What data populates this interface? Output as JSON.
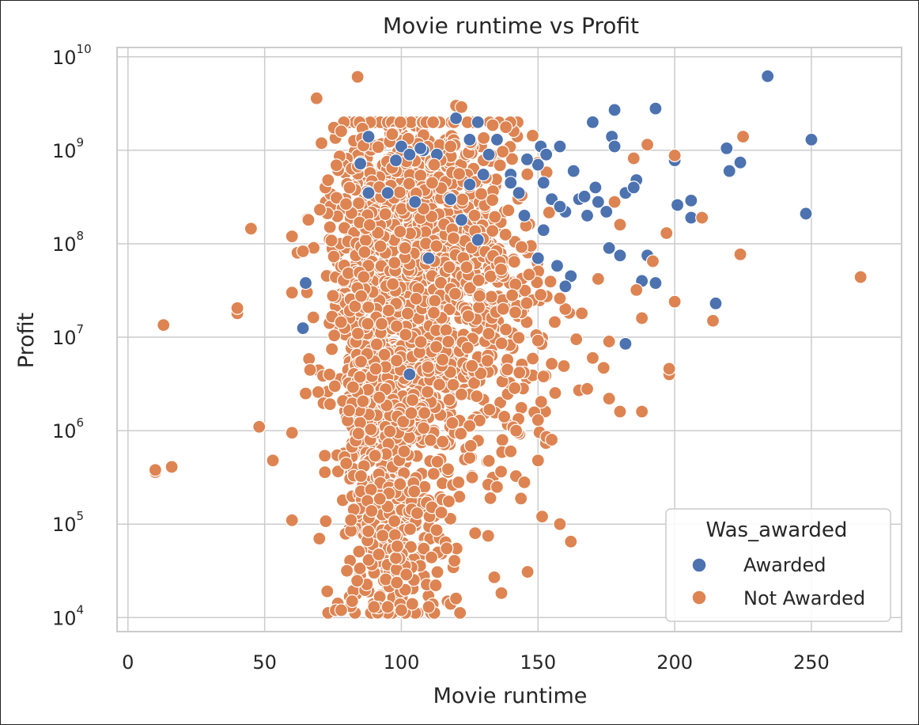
{
  "chart_data": {
    "type": "scatter",
    "title": "Movie runtime vs Profit",
    "xlabel": "Movie runtime",
    "ylabel": "Profit",
    "xlim": [
      -4,
      283
    ],
    "ylim_log10": [
      3.85,
      10.1
    ],
    "y_scale": "log",
    "x_ticks": [
      "0",
      "50",
      "100",
      "150",
      "200",
      "250"
    ],
    "y_ticks": [
      {
        "base": "10",
        "exp": "4"
      },
      {
        "base": "10",
        "exp": "5"
      },
      {
        "base": "10",
        "exp": "6"
      },
      {
        "base": "10",
        "exp": "7"
      },
      {
        "base": "10",
        "exp": "8"
      },
      {
        "base": "10",
        "exp": "9"
      },
      {
        "base": "10",
        "exp": "10"
      }
    ],
    "grid": true,
    "legend": {
      "title": "Was_awarded",
      "placement": "lower-right",
      "entries": [
        {
          "label": "Awarded",
          "color": "#4c72b0"
        },
        {
          "label": "Not Awarded",
          "color": "#dd8452"
        }
      ]
    },
    "series": [
      {
        "name": "Not Awarded",
        "color": "#dd8452",
        "points": [
          [
            10,
            360000
          ],
          [
            10,
            380000
          ],
          [
            16,
            410000
          ],
          [
            13,
            13500000
          ],
          [
            40,
            18000000
          ],
          [
            40,
            20500000
          ],
          [
            45,
            145000000
          ],
          [
            48,
            1100000
          ],
          [
            53,
            480000
          ],
          [
            60,
            950000
          ],
          [
            60,
            110000
          ],
          [
            60,
            120000000
          ],
          [
            60,
            30000000
          ],
          [
            62,
            80000000
          ],
          [
            64,
            83000000
          ],
          [
            65,
            2500000
          ],
          [
            66,
            180000000
          ],
          [
            69,
            3600000000
          ],
          [
            70,
            70000
          ],
          [
            72,
            540000
          ],
          [
            78,
            1600000000
          ],
          [
            84,
            6100000000
          ],
          [
            76,
            12000
          ],
          [
            78,
            12000
          ],
          [
            82,
            15000
          ],
          [
            90,
            13000
          ],
          [
            95,
            13000
          ],
          [
            100,
            12000
          ],
          [
            104,
            14000
          ],
          [
            110,
            13000
          ],
          [
            118,
            14000
          ],
          [
            120,
            16000
          ],
          [
            134,
            27000
          ],
          [
            127,
            80000
          ],
          [
            135,
            250000
          ],
          [
            145,
            280000
          ],
          [
            150,
            480000
          ],
          [
            155,
            800000
          ],
          [
            158,
            100000
          ],
          [
            162,
            65000
          ],
          [
            165,
            2700000
          ],
          [
            168,
            2800000
          ],
          [
            174,
            4700000
          ],
          [
            176,
            2200000
          ],
          [
            180,
            1600000
          ],
          [
            188,
            1600000
          ],
          [
            188,
            16000000
          ],
          [
            198,
            4000000
          ],
          [
            198,
            4600000
          ],
          [
            200,
            24000000
          ],
          [
            214,
            15000000
          ],
          [
            210,
            190000000
          ],
          [
            224,
            77000000
          ],
          [
            225,
            1400000000
          ],
          [
            268,
            44000000
          ],
          [
            197,
            130000000
          ],
          [
            190,
            1150000000
          ],
          [
            200,
            880000000
          ],
          [
            185,
            820000000
          ],
          [
            178,
            280000000
          ],
          [
            180,
            160000000
          ],
          [
            192,
            65000000
          ],
          [
            186,
            32000000
          ],
          [
            176,
            9000000
          ],
          [
            170,
            6000000
          ],
          [
            172,
            42000000
          ],
          [
            166,
            18000000
          ],
          [
            164,
            9500000
          ],
          [
            160,
            20000000
          ],
          [
            155,
            5200000
          ],
          [
            150,
            9200000
          ],
          [
            152,
            3800000
          ],
          [
            158,
            26000000
          ],
          [
            150,
            1300000
          ],
          [
            142,
            1000000
          ],
          [
            140,
            600000
          ],
          [
            120,
            3000000000
          ],
          [
            122,
            2900000000
          ],
          [
            118,
            1100000000
          ],
          [
            112,
            700000000
          ]
        ],
        "cloud": [
          {
            "x_center": 98,
            "x_spread": 10,
            "log_center": 7.6,
            "log_spread": 0.9,
            "count": 700
          },
          {
            "x_center": 110,
            "x_spread": 12,
            "log_center": 7.3,
            "log_spread": 1.0,
            "count": 500
          },
          {
            "x_center": 90,
            "x_spread": 8,
            "log_center": 6.0,
            "log_spread": 1.0,
            "count": 250
          },
          {
            "x_center": 100,
            "x_spread": 9,
            "log_center": 4.9,
            "log_spread": 0.5,
            "count": 180
          },
          {
            "x_center": 125,
            "x_spread": 12,
            "log_center": 7.8,
            "log_spread": 0.8,
            "count": 250
          },
          {
            "x_center": 82,
            "x_spread": 6,
            "log_center": 7.8,
            "log_spread": 0.9,
            "count": 150
          },
          {
            "x_center": 140,
            "x_spread": 10,
            "log_center": 7.0,
            "log_spread": 1.0,
            "count": 120
          }
        ]
      },
      {
        "name": "Awarded",
        "color": "#4c72b0",
        "points": [
          [
            65,
            38000000
          ],
          [
            64,
            12500000
          ],
          [
            85,
            720000000
          ],
          [
            88,
            1400000000
          ],
          [
            88,
            350000000
          ],
          [
            95,
            350000000
          ],
          [
            100,
            1100000000
          ],
          [
            103,
            900000000
          ],
          [
            105,
            280000000
          ],
          [
            108,
            1000000000
          ],
          [
            110,
            70000000
          ],
          [
            103,
            4000000
          ],
          [
            120,
            2200000000
          ],
          [
            125,
            1300000000
          ],
          [
            128,
            2000000000
          ],
          [
            125,
            430000000
          ],
          [
            122,
            180000000
          ],
          [
            128,
            110000000
          ],
          [
            132,
            900000000
          ],
          [
            135,
            1300000000
          ],
          [
            140,
            550000000
          ],
          [
            143,
            350000000
          ],
          [
            145,
            200000000
          ],
          [
            150,
            700000000
          ],
          [
            151,
            1100000000
          ],
          [
            153,
            900000000
          ],
          [
            155,
            300000000
          ],
          [
            152,
            450000000
          ],
          [
            150,
            70000000
          ],
          [
            152,
            140000000
          ],
          [
            157,
            58000000
          ],
          [
            160,
            220000000
          ],
          [
            162,
            45000000
          ],
          [
            160,
            35000000
          ],
          [
            165,
            300000000
          ],
          [
            167,
            320000000
          ],
          [
            170,
            2000000000
          ],
          [
            171,
            400000000
          ],
          [
            175,
            220000000
          ],
          [
            176,
            90000000
          ],
          [
            177,
            1400000000
          ],
          [
            178,
            2700000000
          ],
          [
            178,
            1100000000
          ],
          [
            180,
            75000000
          ],
          [
            182,
            8500000
          ],
          [
            182,
            350000000
          ],
          [
            186,
            480000000
          ],
          [
            188,
            40000000
          ],
          [
            190,
            75000000
          ],
          [
            193,
            38000000
          ],
          [
            193,
            2800000000
          ],
          [
            200,
            780000000
          ],
          [
            201,
            260000000
          ],
          [
            206,
            190000000
          ],
          [
            206,
            290000000
          ],
          [
            215,
            23000000
          ],
          [
            219,
            1050000000
          ],
          [
            220,
            600000000
          ],
          [
            224,
            740000000
          ],
          [
            234,
            6200000000
          ],
          [
            248,
            210000000
          ],
          [
            250,
            1300000000
          ],
          [
            118,
            300000000
          ],
          [
            130,
            550000000
          ],
          [
            113,
            900000000
          ],
          [
            98,
            780000000
          ],
          [
            107,
            1050000000
          ],
          [
            140,
            450000000
          ],
          [
            146,
            800000000
          ],
          [
            158,
            250000000
          ],
          [
            163,
            600000000
          ],
          [
            168,
            200000000
          ],
          [
            172,
            280000000
          ],
          [
            185,
            400000000
          ],
          [
            158,
            1100000000
          ]
        ]
      }
    ]
  }
}
